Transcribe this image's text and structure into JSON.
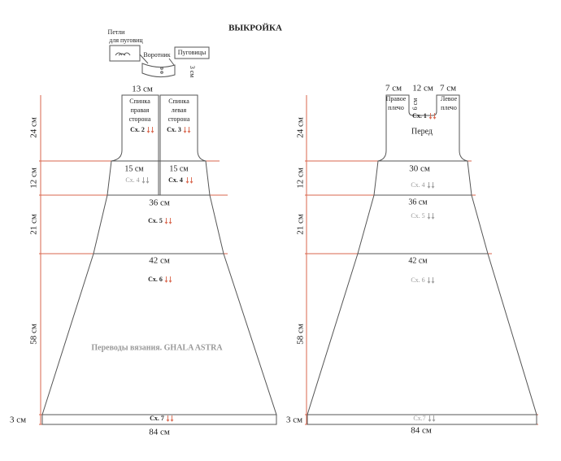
{
  "title": "ВЫКРОЙКА",
  "collar": {
    "loops": [
      "Петли",
      "для пуговиц"
    ],
    "collar": "Воротник",
    "buttons": "Пуговицы",
    "height": "3 см"
  },
  "back": {
    "top_width": "13 см",
    "right_half": [
      "Спинка",
      "правая",
      "сторона"
    ],
    "left_half": [
      "Спинка",
      "левая",
      "сторона"
    ],
    "chart_right": "Сх. 2",
    "chart_left": "Сх. 3",
    "waist_right": "15 см",
    "waist_left": "15 см",
    "chart4_right": "Сх. 4",
    "chart4_left": "Сх. 4",
    "width_36": "36 см",
    "chart5": "Сх. 5",
    "width_42": "42 см",
    "chart6": "Сх. 6",
    "watermark": "Переводы вязания. GHALA ASTRA",
    "chart7": "Сх. 7",
    "bottom_width": "84 см",
    "heights": [
      "24 см",
      "12 см",
      "21 см",
      "58 см",
      "3 см"
    ]
  },
  "front": {
    "shoulder_right": "7 см",
    "neck": "12 см",
    "shoulder_left": "7 см",
    "right_shoulder": [
      "Правое",
      "плечо"
    ],
    "neck_depth": "6 см",
    "left_shoulder": [
      "Левое",
      "плечо"
    ],
    "chart1": "Сх. 1",
    "label": "Перед",
    "waist": "30 см",
    "chart4": "Сх. 4",
    "width_36": "36 см",
    "chart5": "Сх. 5",
    "width_42": "42 см",
    "chart6": "Сх. 6",
    "chart7": "Сх.7",
    "bottom_width": "84 см",
    "heights": [
      "24 см",
      "12 см",
      "21 см",
      "58 см",
      "3 см"
    ]
  }
}
